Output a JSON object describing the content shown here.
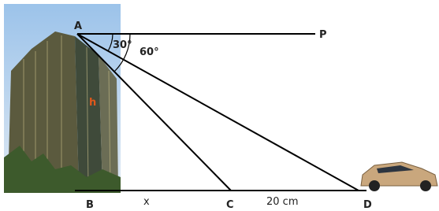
{
  "labels": {
    "A": "A",
    "P": "P",
    "angle_small": "30°",
    "angle_large": "60°",
    "h": "h",
    "B": "B",
    "x": "x",
    "C": "C",
    "CD": "20 cm",
    "D": "D"
  }
}
